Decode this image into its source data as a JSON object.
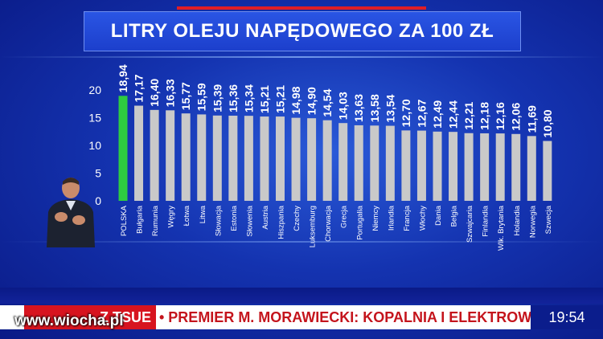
{
  "title": "LITRY OLEJU NAPĘDOWEGO ZA 100 ZŁ",
  "colors": {
    "highlight_bar": "#2ecc40",
    "bar": "#c9c9c9",
    "axis_text": "#ffffff",
    "ticker_red": "#d7141f",
    "time_bg": "#0b1d8c"
  },
  "chart_data": {
    "type": "bar",
    "title": "LITRY OLEJU NAPĘDOWEGO ZA 100 ZŁ",
    "xlabel": "",
    "ylabel": "",
    "ylim": [
      0,
      20
    ],
    "yticks": [
      0,
      5,
      10,
      15,
      20
    ],
    "grid": false,
    "highlight_index": 0,
    "categories": [
      "POLSKA",
      "Bułgaria",
      "Rumunia",
      "Węgry",
      "Łotwa",
      "Litwa",
      "Słowacja",
      "Estonia",
      "Słowenia",
      "Austria",
      "Hiszpania",
      "Czechy",
      "Luksemburg",
      "Chorwacja",
      "Grecja",
      "Portugalia",
      "Niemcy",
      "Irlandia",
      "Francja",
      "Włochy",
      "Dania",
      "Belgia",
      "Szwajcaria",
      "Finlandia",
      "Wlk. Brytania",
      "Holandia",
      "Norwegia",
      "Szwecja"
    ],
    "values": [
      18.94,
      17.17,
      16.4,
      16.33,
      15.77,
      15.59,
      15.39,
      15.36,
      15.34,
      15.21,
      15.21,
      14.98,
      14.9,
      14.54,
      14.03,
      13.63,
      13.58,
      13.54,
      12.7,
      12.67,
      12.49,
      12.44,
      12.21,
      12.18,
      12.16,
      12.06,
      11.69,
      10.8
    ],
    "value_labels": [
      "18,94",
      "17,17",
      "16,40",
      "16,33",
      "15,77",
      "15,59",
      "15,39",
      "15,36",
      "15,34",
      "15,21",
      "15,21",
      "14,98",
      "14,90",
      "14,54",
      "14,03",
      "13,63",
      "13,58",
      "13,54",
      "12,70",
      "12,67",
      "12,49",
      "12,44",
      "12,21",
      "12,18",
      "12,16",
      "12,06",
      "11,69",
      "10,80"
    ]
  },
  "ticker": {
    "label": "Z TSUE",
    "text": "• PREMIER M. MORAWIECKI: KOPALNIA I ELEKTROWNIA T",
    "time": "19:54"
  },
  "watermark": "www.wiocha.pl"
}
